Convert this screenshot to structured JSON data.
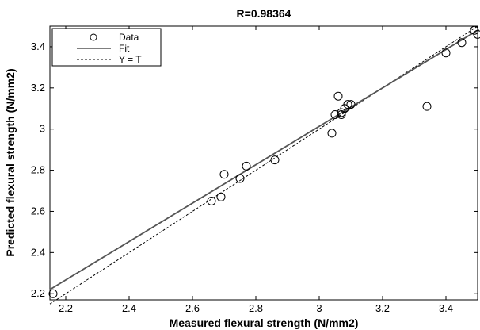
{
  "chart_data": {
    "type": "scatter",
    "title": "R=0.98364",
    "xlabel": "Measured flexural strength (N/mm2)",
    "ylabel": "Predicted flexural strength (N/mm2)",
    "xlim": [
      2.15,
      3.5
    ],
    "ylim": [
      2.17,
      3.5
    ],
    "xticks": [
      2.2,
      2.4,
      2.6,
      2.8,
      3,
      3.2,
      3.4
    ],
    "xtick_labels": [
      "2.2",
      "2.4",
      "2.6",
      "2.8",
      "3",
      "3.2",
      "3.4"
    ],
    "yticks": [
      2.2,
      2.4,
      2.6,
      2.8,
      3,
      3.2,
      3.4
    ],
    "ytick_labels": [
      "2.2",
      "2.4",
      "2.6",
      "2.8",
      "3",
      "3.2",
      "3.4"
    ],
    "grid": false,
    "legend_position": "top-left",
    "legend": [
      {
        "label": "Data",
        "style": "circle-marker"
      },
      {
        "label": "Fit",
        "style": "solid-line"
      },
      {
        "label": "Y = T",
        "style": "dashed-line"
      }
    ],
    "series": [
      {
        "name": "Data",
        "kind": "points",
        "x": [
          2.16,
          2.66,
          2.69,
          2.7,
          2.75,
          2.77,
          2.86,
          3.04,
          3.05,
          3.06,
          3.07,
          3.07,
          3.08,
          3.09,
          3.1,
          3.34,
          3.4,
          3.45,
          3.49,
          3.5
        ],
        "y": [
          2.2,
          2.65,
          2.67,
          2.78,
          2.76,
          2.82,
          2.85,
          2.98,
          3.07,
          3.16,
          3.07,
          3.08,
          3.1,
          3.12,
          3.12,
          3.11,
          3.37,
          3.42,
          3.48,
          3.46
        ]
      },
      {
        "name": "Fit",
        "kind": "line",
        "x": [
          2.15,
          3.5
        ],
        "y": [
          2.22,
          3.48
        ]
      },
      {
        "name": "Y = T",
        "kind": "line",
        "x": [
          2.15,
          3.5
        ],
        "y": [
          2.15,
          3.5
        ]
      }
    ],
    "colors": {
      "axes": "#000000",
      "marker": "#000000",
      "fit": "#555555",
      "identity": "#000000"
    }
  }
}
